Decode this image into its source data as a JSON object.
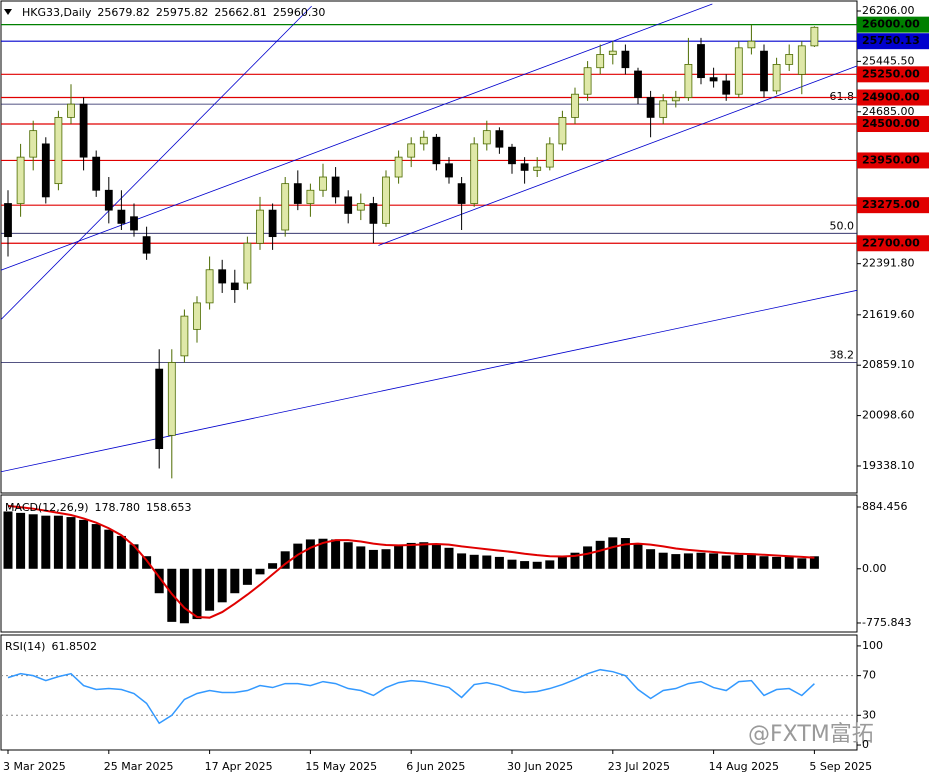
{
  "chart_data": [
    {
      "type": "candlestick",
      "title": "HKG33,Daily",
      "ohlc_readout": [
        "25679.82",
        "25975.82",
        "25662.81",
        "25960.30"
      ],
      "categories": [
        "3 Mar 2025",
        null,
        null,
        null,
        null,
        null,
        null,
        null,
        "25 Mar 2025",
        null,
        null,
        null,
        null,
        null,
        null,
        null,
        "17 Apr 2025",
        null,
        null,
        null,
        null,
        null,
        null,
        null,
        "15 May 2025",
        null,
        null,
        null,
        null,
        null,
        null,
        null,
        "6 Jun 2025",
        null,
        null,
        null,
        null,
        null,
        null,
        null,
        "30 Jun 2025",
        null,
        null,
        null,
        null,
        null,
        null,
        null,
        "23 Jul 2025",
        null,
        null,
        null,
        null,
        null,
        null,
        null,
        "14 Aug 2025",
        null,
        null,
        null,
        null,
        null,
        null,
        null,
        "5 Sep 2025"
      ],
      "open": [
        23300,
        23300,
        24000,
        24200,
        23600,
        24600,
        24800,
        24000,
        23500,
        23200,
        23100,
        22800,
        20800,
        19800,
        21000,
        21400,
        21800,
        22300,
        22100,
        22100,
        22700,
        23200,
        22900,
        23600,
        23300,
        23500,
        23700,
        23400,
        23200,
        23300,
        23000,
        23700,
        24000,
        24200,
        24300,
        23900,
        23600,
        23300,
        24200,
        24400,
        24150,
        23900,
        23800,
        23850,
        24200,
        24600,
        24950,
        25350,
        25550,
        25600,
        25300,
        24900,
        24600,
        24850,
        24900,
        25700,
        25200,
        25150,
        24950,
        25650,
        25600,
        25000,
        25400,
        25250,
        25679.82
      ],
      "high": [
        23500,
        24200,
        24550,
        24300,
        24700,
        25100,
        24900,
        24100,
        23700,
        23500,
        23300,
        22950,
        21100,
        21100,
        21700,
        21900,
        22500,
        22450,
        22300,
        22800,
        23400,
        23300,
        23700,
        23800,
        23600,
        23900,
        23850,
        23500,
        23450,
        23400,
        23800,
        24100,
        24300,
        24400,
        24350,
        24000,
        23700,
        24300,
        24550,
        24450,
        24200,
        24000,
        24000,
        24300,
        24700,
        25050,
        25450,
        25700,
        25750,
        25700,
        25350,
        25000,
        24950,
        25000,
        25800,
        25800,
        25350,
        25250,
        25750,
        26000,
        25700,
        25500,
        25700,
        25750,
        25975.82
      ],
      "low": [
        22500,
        23100,
        23800,
        23300,
        23500,
        24500,
        23800,
        23400,
        23000,
        22900,
        22800,
        22450,
        19300,
        19150,
        20900,
        21200,
        21700,
        21950,
        21800,
        22000,
        22600,
        22600,
        22800,
        23200,
        23100,
        23400,
        23300,
        23000,
        23050,
        22700,
        22950,
        23600,
        23850,
        24100,
        23800,
        23600,
        22900,
        23250,
        24100,
        24050,
        23750,
        23600,
        23700,
        23800,
        24100,
        24500,
        24850,
        25250,
        25400,
        25250,
        24800,
        24300,
        24500,
        24750,
        24850,
        25100,
        25050,
        24850,
        24900,
        25550,
        24900,
        24950,
        25300,
        24950,
        25662.81
      ],
      "close": [
        22800,
        24000,
        24400,
        23400,
        24600,
        24800,
        24000,
        23500,
        23200,
        23000,
        22900,
        22550,
        19600,
        20900,
        21600,
        21800,
        22300,
        22100,
        22000,
        22700,
        23200,
        22800,
        23600,
        23300,
        23500,
        23700,
        23400,
        23150,
        23300,
        23000,
        23700,
        24000,
        24200,
        24300,
        23900,
        23700,
        23300,
        24200,
        24400,
        24150,
        23900,
        23800,
        23850,
        24200,
        24600,
        24950,
        25350,
        25550,
        25600,
        25350,
        24900,
        24600,
        24850,
        24900,
        25400,
        25200,
        25150,
        24950,
        25650,
        25750,
        25000,
        25400,
        25550,
        25680,
        25960.3
      ],
      "up_color": "#dfe8a8",
      "down_color": "#000000",
      "ylim": [
        18930,
        26357
      ],
      "yticks": [
        {
          "value": 26206,
          "label": "26206.00"
        },
        {
          "value": 25445.5,
          "label": "25445.50"
        },
        {
          "value": 24685,
          "label": "24685.00"
        },
        {
          "value": 22391.8,
          "label": "22391.80"
        },
        {
          "value": 21619.6,
          "label": "21619.60"
        },
        {
          "value": 20859.1,
          "label": "20859.10"
        },
        {
          "value": 20098.6,
          "label": "20098.60"
        },
        {
          "value": 19338.1,
          "label": "19338.10"
        }
      ],
      "levels": [
        {
          "value": 26000,
          "label": "26000.00",
          "color": "#008000"
        },
        {
          "value": 25750.13,
          "label": "25750.13",
          "color": "#0000cd"
        },
        {
          "value": 25250,
          "label": "25250.00",
          "color": "#e00000"
        },
        {
          "value": 24900,
          "label": "24900.00",
          "color": "#e00000"
        },
        {
          "value": 24500,
          "label": "24500.00",
          "color": "#e00000"
        },
        {
          "value": 23950,
          "label": "23950.00",
          "color": "#e00000"
        },
        {
          "value": 23275,
          "label": "23275.00",
          "color": "#e00000"
        },
        {
          "value": 22700,
          "label": "22700.00",
          "color": "#e00000"
        }
      ],
      "fibonacci": [
        {
          "level": "61.8",
          "value": 24800
        },
        {
          "level": "50.0",
          "value": 22850
        },
        {
          "level": "38.2",
          "value": 20900
        }
      ],
      "fib_color": "#1a1a5a",
      "trendlines": [
        {
          "x": [
            -0.6,
            24.1
          ],
          "y": [
            21540,
            26280
          ]
        },
        {
          "x": [
            -0.6,
            55.9
          ],
          "y": [
            22290,
            26312
          ]
        },
        {
          "x": [
            29.4,
            67.4
          ],
          "y": [
            22667,
            25378
          ]
        },
        {
          "x": [
            -0.6,
            67.4
          ],
          "y": [
            19249,
            21990
          ]
        }
      ],
      "trendline_color": "#0000cd",
      "watermark": "@FXTM富拓"
    },
    {
      "type": "macd",
      "title": "MACD(12,26,9)",
      "readout": [
        "178.780",
        "158.653"
      ],
      "histogram": [
        820,
        800,
        780,
        760,
        760,
        740,
        700,
        640,
        560,
        470,
        350,
        180,
        -350,
        -760,
        -780,
        -720,
        -600,
        -480,
        -350,
        -230,
        -80,
        80,
        250,
        360,
        420,
        430,
        420,
        380,
        320,
        270,
        280,
        330,
        370,
        380,
        360,
        300,
        220,
        200,
        190,
        170,
        130,
        110,
        100,
        120,
        170,
        230,
        320,
        400,
        450,
        440,
        360,
        280,
        230,
        210,
        220,
        230,
        220,
        190,
        200,
        220,
        180,
        170,
        170,
        150,
        178.78
      ],
      "signal": [
        900,
        880,
        860,
        830,
        800,
        770,
        720,
        660,
        580,
        480,
        330,
        120,
        -120,
        -360,
        -560,
        -690,
        -700,
        -620,
        -500,
        -370,
        -230,
        -80,
        70,
        200,
        300,
        370,
        410,
        410,
        390,
        360,
        340,
        335,
        340,
        350,
        355,
        345,
        320,
        300,
        280,
        260,
        240,
        215,
        195,
        180,
        175,
        185,
        215,
        260,
        310,
        350,
        360,
        345,
        320,
        290,
        270,
        255,
        240,
        225,
        215,
        210,
        200,
        190,
        180,
        170,
        158.653
      ],
      "histogram_color": "#000000",
      "signal_color": "#e00000",
      "ylim": [
        -905,
        1056
      ],
      "yticks": [
        884.456,
        {
          "value": 0,
          "label": "0.00"
        },
        -775.843
      ]
    },
    {
      "type": "line",
      "title": "RSI(14)",
      "readout": "61.8502",
      "values": [
        68,
        72,
        70,
        65,
        69,
        72,
        60,
        56,
        57,
        56,
        52,
        42,
        22,
        30,
        46,
        52,
        55,
        53,
        53,
        55,
        60,
        58,
        62,
        62,
        60,
        64,
        62,
        57,
        55,
        50,
        58,
        63,
        65,
        64,
        61,
        58,
        48,
        61,
        63,
        60,
        55,
        53,
        54,
        57,
        61,
        66,
        72,
        76,
        74,
        70,
        56,
        47,
        55,
        57,
        62,
        64,
        58,
        55,
        64,
        65,
        50,
        56,
        57,
        50,
        61.8502
      ],
      "color": "#3399ff",
      "ylim": [
        -5,
        111
      ],
      "yticks": [
        100,
        70,
        30,
        0
      ],
      "levels": [
        70,
        30
      ]
    }
  ]
}
